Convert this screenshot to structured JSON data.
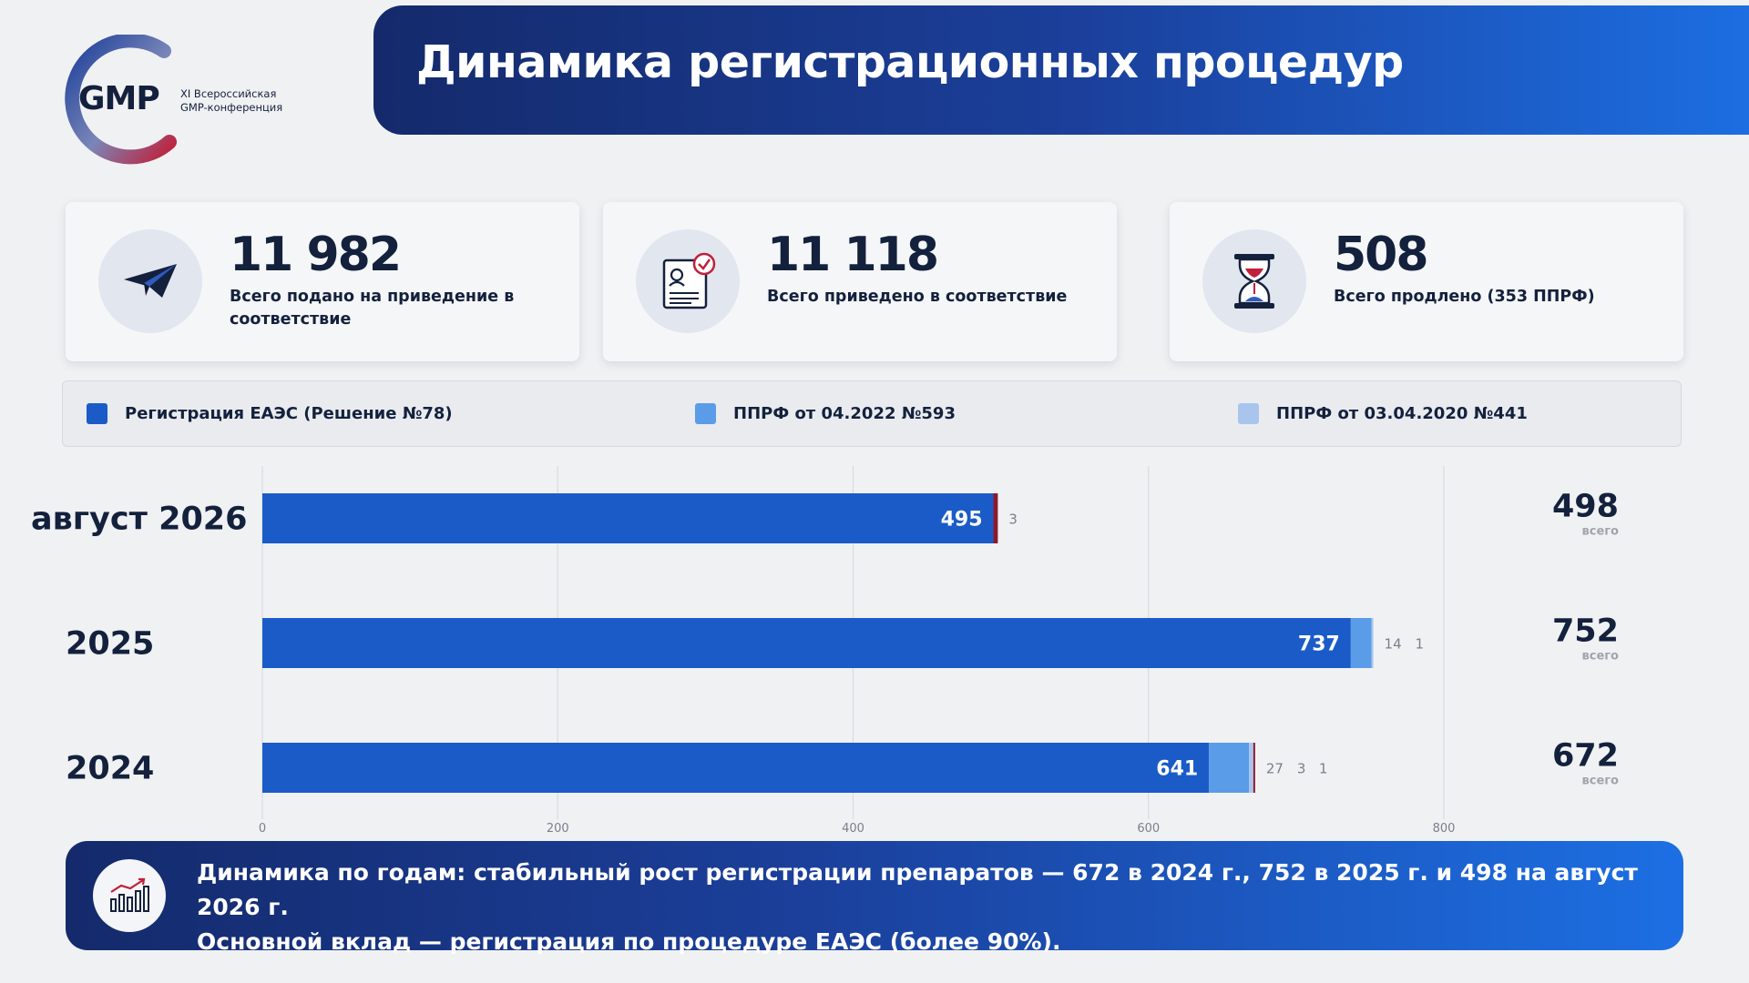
{
  "logo": {
    "mark": "GMP",
    "subtitle_line1": "XI Всероссийская",
    "subtitle_line2": "GMP-конференция"
  },
  "header": {
    "title": "Динамика регистрационных процедур"
  },
  "kpis": [
    {
      "value": "11 982",
      "label": "Всего подано на приведение в соответствие",
      "icon": "paper-plane-icon"
    },
    {
      "value": "11 118",
      "label": "Всего приведено в соответствие",
      "icon": "document-check-icon"
    },
    {
      "value": "508",
      "label": "Всего продлено (353 ППРФ)",
      "icon": "hourglass-icon"
    }
  ],
  "legend": [
    {
      "label": "Регистрация ЕАЭС (Решение №78)",
      "color": "#1a5bc8"
    },
    {
      "label": "ППРФ от 04.2022 №593",
      "color": "#5b9ce8"
    },
    {
      "label": "ППРФ от 03.04.2020 №441",
      "color": "#a9c5ee"
    }
  ],
  "chart_data": {
    "type": "bar",
    "orientation": "horizontal",
    "stacked": true,
    "categories": [
      "август 2026",
      "2025",
      "2024"
    ],
    "series": [
      {
        "name": "Регистрация ЕАЭС (Решение №78)",
        "values": [
          495,
          737,
          641
        ]
      },
      {
        "name": "ППРФ от 04.2022 №593",
        "values": [
          0,
          14,
          27
        ]
      },
      {
        "name": "ППРФ от 03.04.2020 №441",
        "values": [
          0,
          1,
          3
        ]
      },
      {
        "values": [
          3,
          0,
          1
        ]
      }
    ],
    "segment_labels": [
      [
        "495",
        "",
        "",
        "3"
      ],
      [
        "737",
        "14",
        "1",
        ""
      ],
      [
        "641",
        "27",
        "3",
        "1"
      ]
    ],
    "totals": [
      "498",
      "752",
      "672"
    ],
    "total_caption": "всего",
    "x_ticks": [
      0,
      200,
      400,
      600,
      800
    ],
    "xlim": [
      0,
      800
    ],
    "grid": true,
    "colors": [
      "#1a5bc8",
      "#5b9ce8",
      "#a9c5ee",
      "#8b1a2e"
    ]
  },
  "banner": {
    "line1": "Динамика по годам:  стабильный рост регистрации препаратов — 672 в 2024 г., 752 в 2025 г. и 498 на август 2026 г.",
    "line2": "Основной вклад — регистрация по процедуре ЕАЭС (более 90%).",
    "icon": "growth-chart-icon"
  }
}
